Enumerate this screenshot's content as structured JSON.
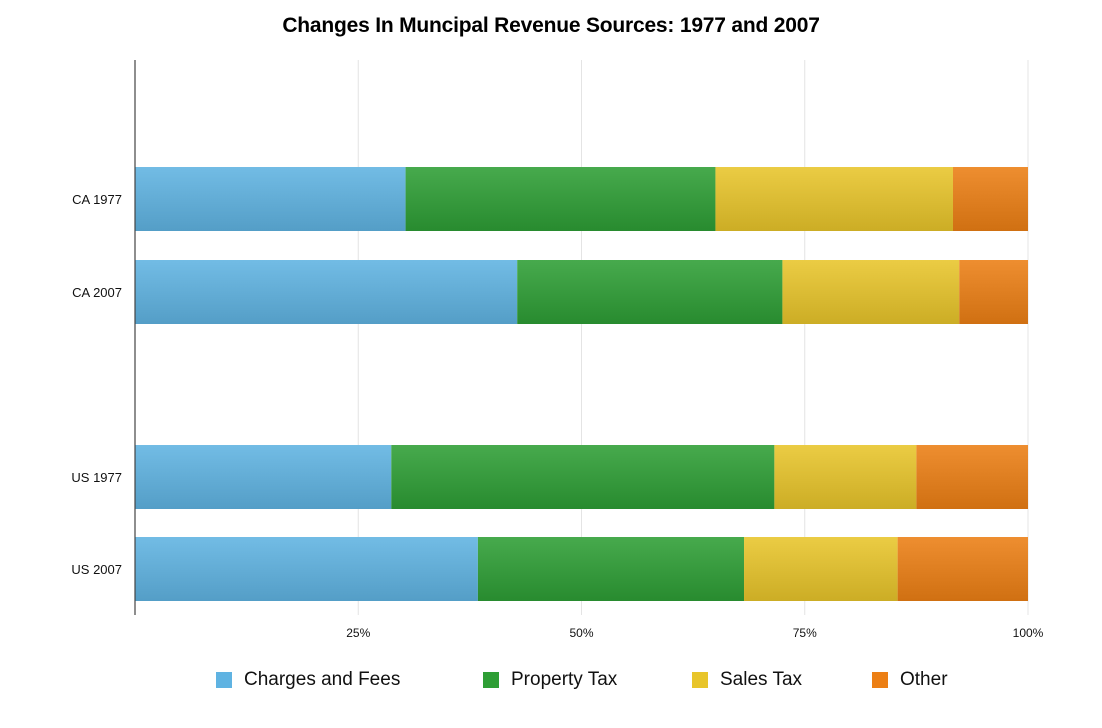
{
  "chart_data": {
    "type": "bar",
    "orientation": "horizontal",
    "stacked": true,
    "normalized_to_percent": true,
    "title": "Changes In Muncipal Revenue Sources: 1977 and 2007",
    "xlabel": "",
    "ylabel": "",
    "xlim": [
      0,
      100
    ],
    "x_ticks": [
      "25%",
      "50%",
      "75%",
      "100%"
    ],
    "x_tick_values": [
      25,
      50,
      75,
      100
    ],
    "grid": true,
    "legend_position": "bottom",
    "categories": [
      "CA 1977",
      "CA 2007",
      "US 1977",
      "US 2007"
    ],
    "category_groups": [
      [
        "CA 1977",
        "CA 2007"
      ],
      [
        "US 1977",
        "US 2007"
      ]
    ],
    "series": [
      {
        "name": "Charges and Fees",
        "color": "#5fb3e2",
        "values": [
          30.3,
          42.8,
          28.7,
          38.4
        ]
      },
      {
        "name": "Property Tax",
        "color": "#2e9e35",
        "values": [
          34.7,
          29.7,
          42.9,
          29.8
        ]
      },
      {
        "name": "Sales Tax",
        "color": "#e8c52a",
        "values": [
          26.6,
          19.8,
          15.9,
          17.2
        ]
      },
      {
        "name": "Other",
        "color": "#ec7f14",
        "values": [
          8.4,
          7.7,
          12.5,
          14.6
        ]
      }
    ]
  }
}
